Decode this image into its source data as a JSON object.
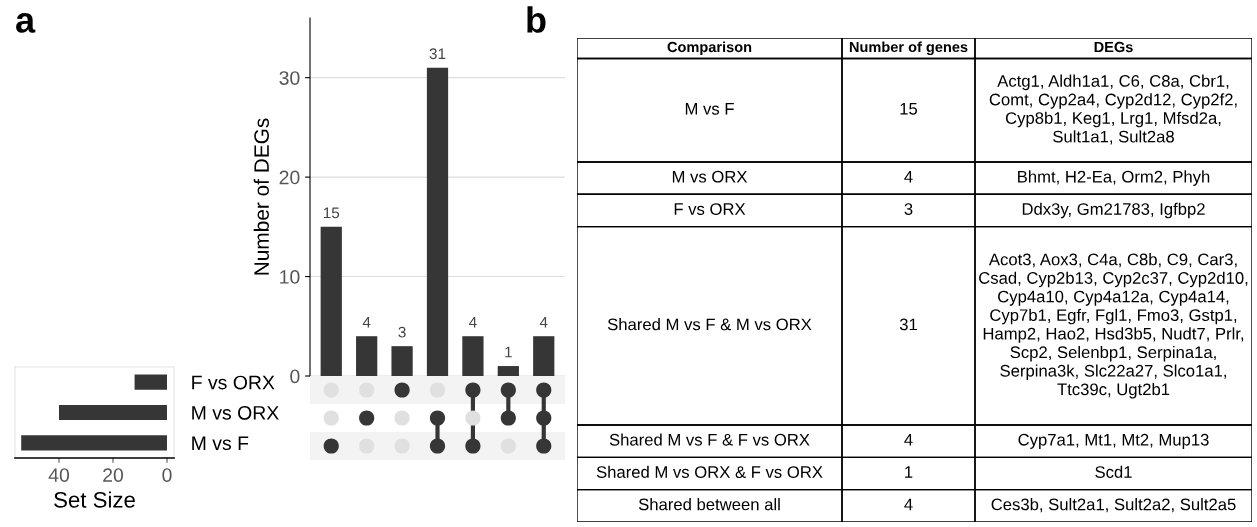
{
  "chart_data": [
    {
      "type": "bar",
      "annotations": [
        "a"
      ],
      "ylabel": "Number of DEGs",
      "categories": [
        null,
        null,
        null,
        null,
        null,
        null,
        null
      ],
      "values": [
        15,
        4,
        3,
        31,
        4,
        1,
        4
      ],
      "color": "#363636",
      "ylim": [
        0,
        36
      ],
      "yticks": [
        0,
        10,
        20,
        30
      ],
      "grid": "y",
      "data_labels": true
    },
    {
      "type": "bar",
      "orientation": "horizontal",
      "xlabel": "Set Size",
      "categories": [
        "F vs ORX",
        "M vs ORX",
        "M vs F"
      ],
      "values": [
        12,
        40,
        54
      ],
      "color": "#363636",
      "xlim": [
        56.3,
        -2.6
      ],
      "xticks": [
        40,
        20,
        0
      ]
    },
    {
      "type": "other",
      "categories": [
        null,
        null,
        null,
        null,
        null,
        null,
        null
      ],
      "color": "#363636",
      "cells": [
        [
          false,
          false,
          true,
          false,
          true,
          true,
          true
        ],
        [
          false,
          true,
          false,
          true,
          false,
          true,
          true
        ],
        [
          true,
          false,
          false,
          true,
          true,
          false,
          true
        ]
      ]
    },
    {
      "type": "other",
      "annotations": [
        "b"
      ],
      "categories": [
        "Comparison",
        "Number of genes",
        "DEGs"
      ],
      "cell_labels": [
        [
          "M vs F",
          "15",
          "Actg1, Aldh1a1, C6, C8a, Cbr1, Comt, Cyp2a4, Cyp2d12, Cyp2f2, Cyp8b1, Keg1, Lrg1, Mfsd2a, Sult1a1, Sult2a8"
        ],
        [
          "M vs ORX",
          "4",
          "Bhmt, H2-Ea, Orm2, Phyh"
        ],
        [
          "F vs ORX",
          "3",
          "Ddx3y, Gm21783, Igfbp2"
        ],
        [
          "Shared M vs F & M vs ORX",
          "31",
          "Acot3, Aox3, C4a, C8b, C9, Car3, Csad, Cyp2b13, Cyp2c37, Cyp2d10, Cyp4a10, Cyp4a12a, Cyp4a14, Cyp7b1, Egfr, Fgl1, Fmo3, Gstp1, Hamp2, Hao2, Hsd3b5, Nudt7, Prlr, Scp2, Selenbp1, Serpina1a, Serpina3k, Slc22a27, Slco1a1, Ttc39c, Ugt2b1"
        ],
        [
          "Shared M vs F & F vs ORX",
          "4",
          "Cyp7a1, Mt1, Mt2, Mup13"
        ],
        [
          "Shared M vs ORX & F vs ORX",
          "1",
          "Scd1"
        ],
        [
          "Shared between all",
          "4",
          "Ces3b, Sult2a1, Sult2a2, Sult2a5"
        ]
      ]
    }
  ]
}
